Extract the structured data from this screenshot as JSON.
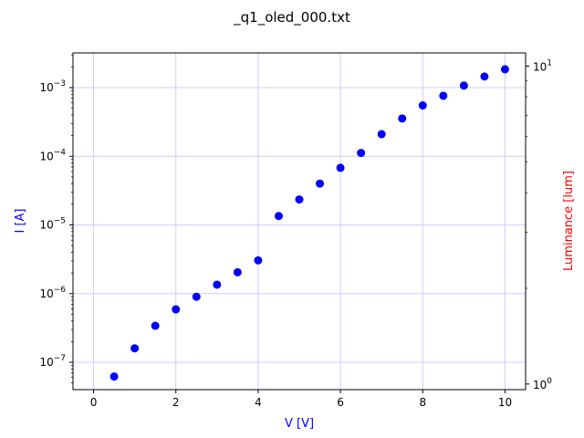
{
  "chart_data": {
    "type": "scatter",
    "title": "_q1_oled_000.txt",
    "xlabel": "V [V]",
    "ylabel": "I [A]",
    "y2label": "Luminance [lum]",
    "xlabel_color": "#0000ff",
    "ylabel_color": "#0000ff",
    "y2label_color": "#ff0000",
    "marker_color": "#0000ff",
    "grid_color": "#ccccff",
    "grid": true,
    "xlim": [
      -0.5,
      10.5
    ],
    "ylim": [
      4e-08,
      0.0032
    ],
    "yscale": "log",
    "y2lim": [
      0.96,
      11.0
    ],
    "y2scale": "log",
    "xticks": [
      {
        "value": 0,
        "label": "0"
      },
      {
        "value": 2,
        "label": "2"
      },
      {
        "value": 4,
        "label": "4"
      },
      {
        "value": 6,
        "label": "6"
      },
      {
        "value": 8,
        "label": "8"
      },
      {
        "value": 10,
        "label": "10"
      }
    ],
    "yticks": [
      {
        "value": 1e-07,
        "base": "10",
        "exp": "−7"
      },
      {
        "value": 1e-06,
        "base": "10",
        "exp": "−6"
      },
      {
        "value": 1e-05,
        "base": "10",
        "exp": "−5"
      },
      {
        "value": 0.0001,
        "base": "10",
        "exp": "−4"
      },
      {
        "value": 0.001,
        "base": "10",
        "exp": "−3"
      }
    ],
    "y2ticks": [
      {
        "value": 1,
        "base": "10",
        "exp": "0"
      },
      {
        "value": 10,
        "base": "10",
        "exp": "1"
      }
    ],
    "series": [
      {
        "x": [
          0.5,
          1.0,
          1.5,
          2.0,
          2.5,
          3.0,
          3.5,
          4.0,
          4.5,
          5.0,
          5.5,
          6.0,
          6.5,
          7.0,
          7.5,
          8.0,
          8.5,
          9.0,
          9.5,
          10.0
        ],
        "y": [
          6.2e-08,
          1.6e-07,
          3.4e-07,
          5.9e-07,
          9e-07,
          1.35e-06,
          2.05e-06,
          3.05e-06,
          1.35e-05,
          2.35e-05,
          4e-05,
          6.8e-05,
          0.000112,
          0.00021,
          0.000355,
          0.00055,
          0.00076,
          0.00107,
          0.00145,
          0.00185
        ]
      }
    ]
  }
}
